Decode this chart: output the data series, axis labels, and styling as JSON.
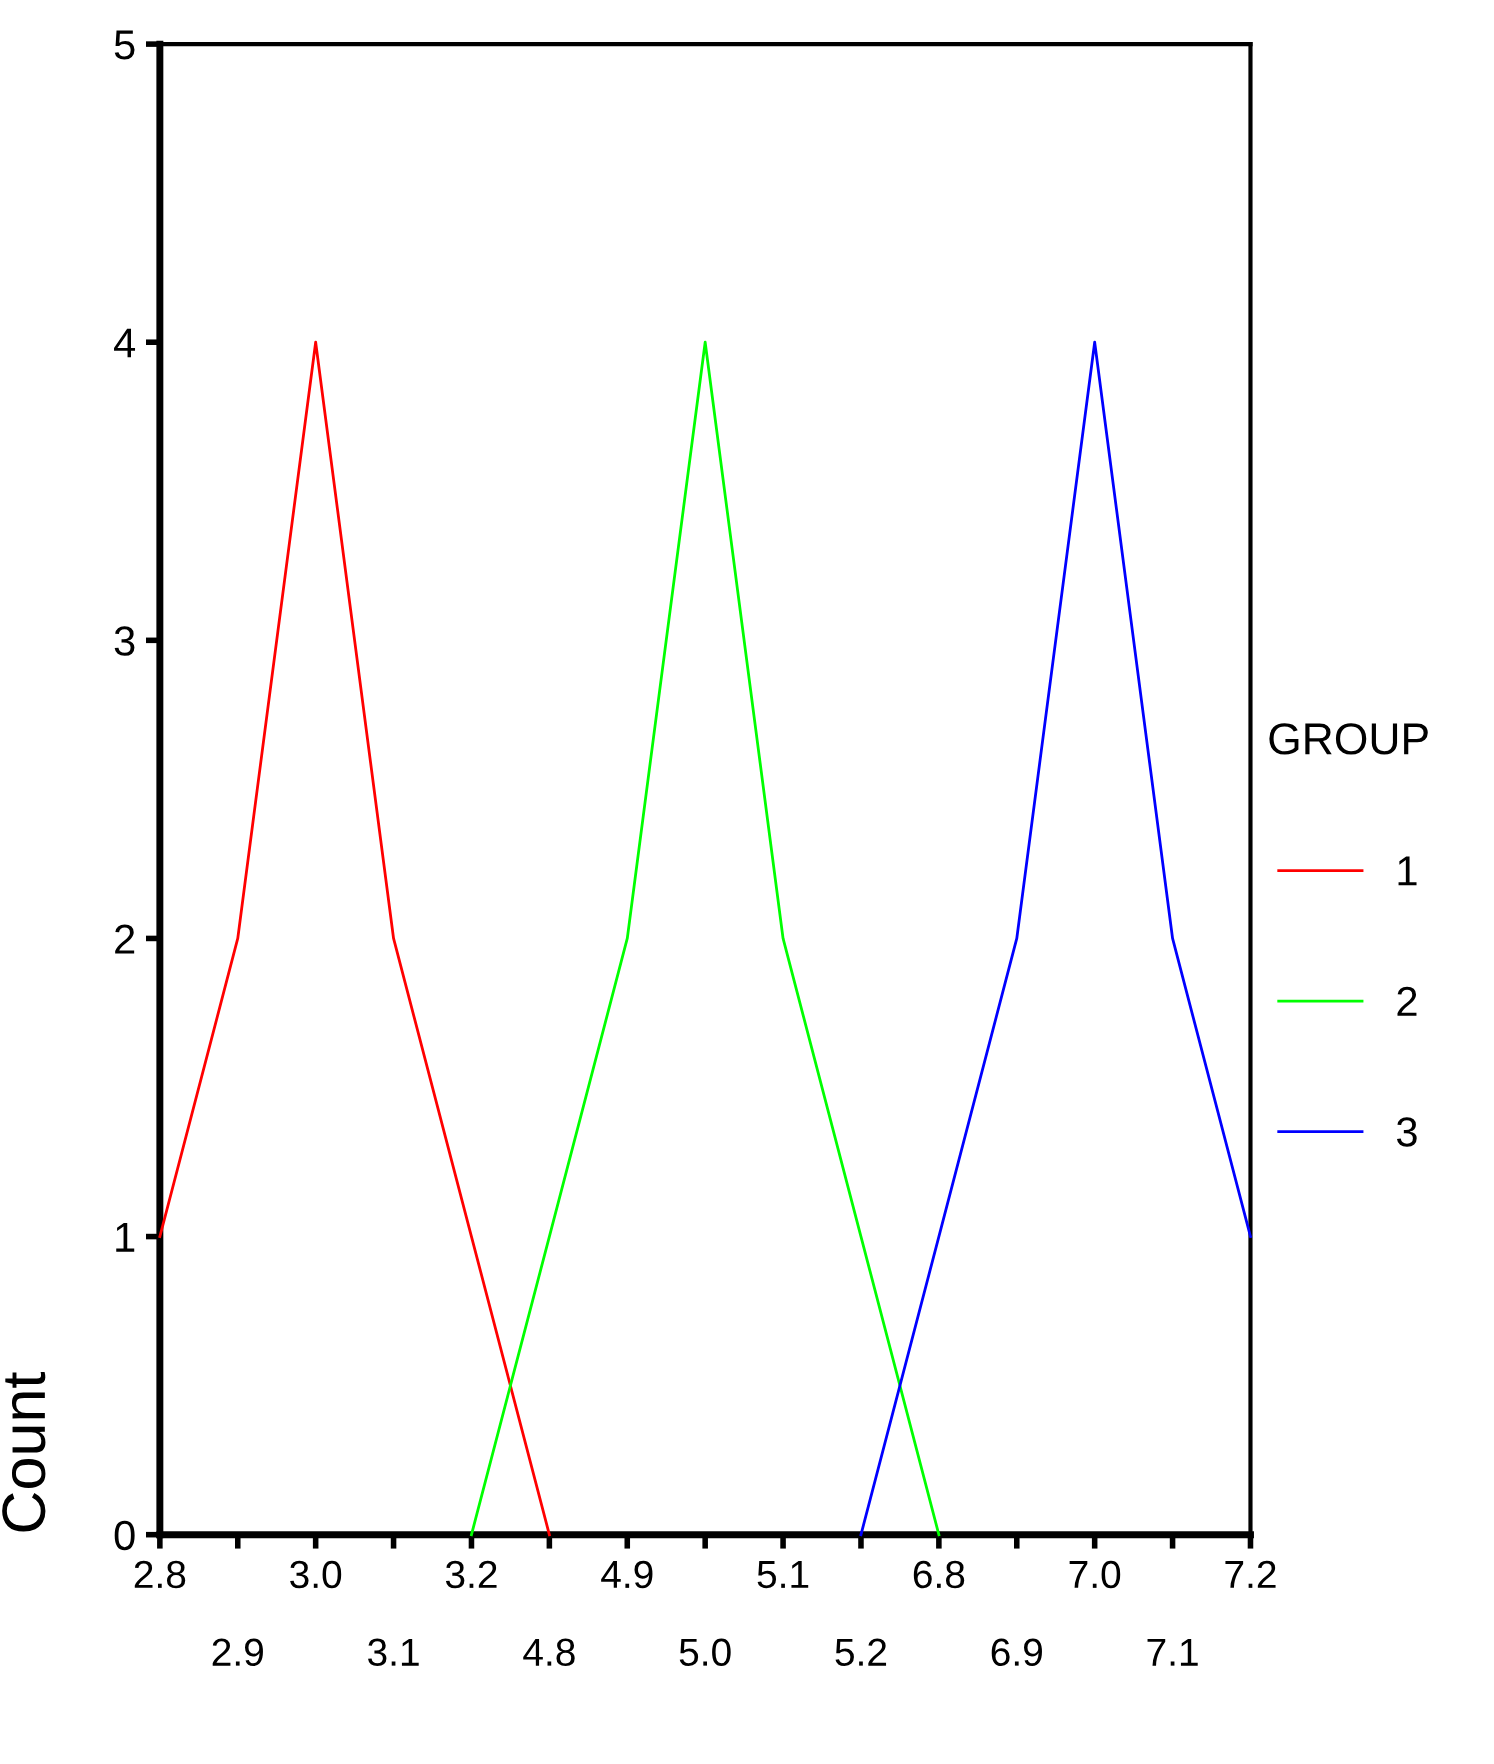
{
  "chart_data": {
    "type": "line",
    "ylabel": "Count",
    "legend_title": "GROUP",
    "legend": "right",
    "grid": false,
    "marker": "none",
    "line_style": "solid",
    "categories": [
      "2.8",
      "2.9",
      "3.0",
      "3.1",
      "3.2",
      "4.8",
      "4.9",
      "5.0",
      "5.1",
      "5.2",
      "6.8",
      "6.9",
      "7.0",
      "7.1",
      "7.2"
    ],
    "ylim": [
      0,
      5
    ],
    "yticks": [
      0,
      1,
      2,
      3,
      4,
      5
    ],
    "series": [
      {
        "name": "1",
        "color": "#ff0000",
        "values": [
          1,
          2,
          4,
          2,
          1,
          0,
          null,
          null,
          null,
          null,
          null,
          null,
          null,
          null,
          null
        ]
      },
      {
        "name": "2",
        "color": "#00ff00",
        "values": [
          null,
          null,
          null,
          null,
          0,
          1,
          2,
          4,
          2,
          1,
          0,
          null,
          null,
          null,
          null
        ]
      },
      {
        "name": "3",
        "color": "#0000ff",
        "values": [
          null,
          null,
          null,
          null,
          null,
          null,
          null,
          null,
          null,
          0,
          1,
          2,
          4,
          2,
          1
        ]
      }
    ]
  }
}
